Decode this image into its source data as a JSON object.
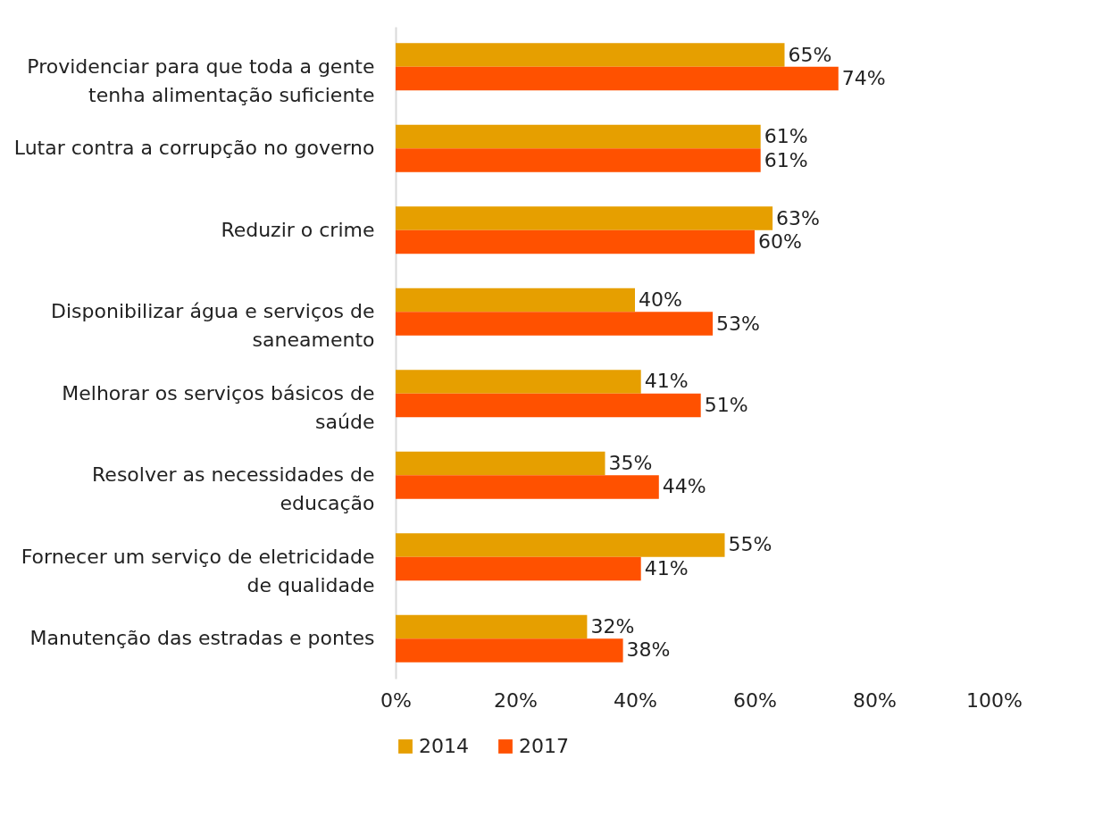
{
  "chart_data": {
    "type": "bar",
    "orientation": "horizontal",
    "categories": [
      "Providenciar para que toda a gente tenha alimentação suficiente",
      "Lutar contra a corrupção no governo",
      "Reduzir o crime",
      "Disponibilizar água e serviços de saneamento",
      "Melhorar os serviços básicos de saúde",
      "Resolver as necessidades de educação",
      "Fornecer um serviço de eletricidade de qualidade",
      "Manutenção das estradas e pontes"
    ],
    "series": [
      {
        "name": "2014",
        "color": "#e69f00",
        "values": [
          65,
          61,
          63,
          40,
          41,
          35,
          55,
          32
        ],
        "value_labels": [
          "65%",
          "61%",
          "63%",
          "40%",
          "41%",
          "35%",
          "55%",
          "32%"
        ]
      },
      {
        "name": "2017",
        "color": "#ff5100",
        "values": [
          74,
          61,
          60,
          53,
          51,
          44,
          41,
          38
        ],
        "value_labels": [
          "74%",
          "61%",
          "60%",
          "53%",
          "51%",
          "44%",
          "41%",
          "38%"
        ]
      }
    ],
    "xlim": [
      0,
      100
    ],
    "xticks": [
      {
        "value": 0,
        "label": "0%"
      },
      {
        "value": 20,
        "label": "20%"
      },
      {
        "value": 40,
        "label": "40%"
      },
      {
        "value": 60,
        "label": "60%"
      },
      {
        "value": 80,
        "label": "80%"
      },
      {
        "value": 100,
        "label": "100%"
      }
    ],
    "legend": "bottom"
  }
}
